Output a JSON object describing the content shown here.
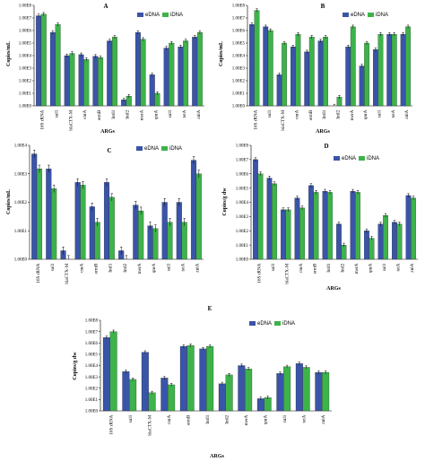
{
  "colors": {
    "edna": "#3a54a8",
    "idna": "#3db34a",
    "axis": "#000000",
    "error": "#000000"
  },
  "chart_data": [
    {
      "type": "bar",
      "title": "A",
      "xlabel": "ARGs",
      "ylabel": "Copies/mL",
      "yscale": "log",
      "ylim": [
        1,
        100000000
      ],
      "yticks": [
        "1.00E0",
        "1.00E1",
        "1.00E2",
        "1.00E3",
        "1.00E4",
        "1.00E5",
        "1.00E6",
        "1.00E7",
        "1.00E8"
      ],
      "legend": [
        "eDNA",
        "iDNA"
      ],
      "legend_position": "top-right",
      "categories": [
        "16S rRNA",
        "sul1",
        "blaCTX-M",
        "cnrA",
        "ermB",
        "IntI1",
        "IntI2",
        "merA",
        "qnrA",
        "sul1",
        "tetA",
        "znlA"
      ],
      "series": [
        {
          "name": "eDNA",
          "values": [
            15000000,
            700000,
            10000,
            12000,
            9000,
            150000,
            3,
            700000,
            300,
            40000,
            50000,
            300000
          ]
        },
        {
          "name": "iDNA",
          "values": [
            20000000,
            3000000,
            15000,
            5000,
            7000,
            300000,
            6,
            200000,
            10,
            100000,
            150000,
            700000
          ]
        }
      ]
    },
    {
      "type": "bar",
      "title": "B",
      "xlabel": "ARGs",
      "ylabel": "Copies/mL",
      "yscale": "log",
      "ylim": [
        1,
        100000000
      ],
      "yticks": [
        "1.00E0",
        "1.00E1",
        "1.00E2",
        "1.00E3",
        "1.00E4",
        "1.00E5",
        "1.00E6",
        "1.00E7",
        "1.00E8"
      ],
      "legend": [
        "eDNA",
        "iDNA"
      ],
      "legend_position": "top-right",
      "categories": [
        "16S rRNA",
        "sul1",
        "blaCTX-M",
        "cnrA",
        "ermB",
        "IntI1",
        "IntI2",
        "merA",
        "qnrA",
        "sul1",
        "tetA",
        "znlA"
      ],
      "series": [
        {
          "name": "eDNA",
          "values": [
            3000000,
            2000000,
            300,
            50000,
            20000,
            150000,
            1,
            50000,
            1500,
            30000,
            500000,
            500000
          ]
        },
        {
          "name": "iDNA",
          "values": [
            40000000,
            1000000,
            100000,
            500000,
            300000,
            300000,
            5,
            2000000,
            100000,
            500000,
            500000,
            2000000
          ]
        }
      ]
    },
    {
      "type": "bar",
      "title": "C",
      "xlabel": "",
      "ylabel": "Copies/mL",
      "yscale": "log",
      "ylim": [
        1,
        10000
      ],
      "yticks": [
        "1.00E0",
        "1.00E1",
        "1.00E2",
        "1.00E3",
        "1.00E4"
      ],
      "legend": [
        "eDNA",
        "iDNA"
      ],
      "legend_position": "top-right",
      "categories": [
        "16S rRNA",
        "sul1",
        "blaCTX-M",
        "cnrA",
        "ermB",
        "IntI1",
        "IntI2",
        "merA",
        "qnrA",
        "sul1",
        "tetA",
        "znlA"
      ],
      "series": [
        {
          "name": "eDNA",
          "values": [
            5000,
            1500,
            2,
            500,
            70,
            500,
            2,
            80,
            15,
            100,
            100,
            3000
          ]
        },
        {
          "name": "iDNA",
          "values": [
            1500,
            300,
            1,
            400,
            20,
            150,
            1,
            50,
            12,
            20,
            20,
            1000
          ]
        }
      ]
    },
    {
      "type": "bar",
      "title": "D",
      "xlabel": "ARGs",
      "ylabel": "Copies/g dw",
      "yscale": "log",
      "ylim": [
        1,
        100000000
      ],
      "yticks": [
        "1.00E0",
        "1.00E1",
        "1.00E2",
        "1.00E3",
        "1.00E4",
        "1.00E5",
        "1.00E6",
        "1.00E7",
        "1.00E8"
      ],
      "legend": [
        "eDNA",
        "iDNA"
      ],
      "legend_position": "top-right",
      "categories": [
        "16S rRNA",
        "sul1",
        "blaCTX-M",
        "cnrA",
        "ermB",
        "IntI1",
        "IntI2",
        "merA",
        "qnrA",
        "sul1",
        "tetA",
        "znlA"
      ],
      "series": [
        {
          "name": "eDNA",
          "values": [
            10000000,
            500000,
            3000,
            20000,
            150000,
            60000,
            300,
            60000,
            100,
            300,
            400,
            30000
          ]
        },
        {
          "name": "iDNA",
          "values": [
            1000000,
            200000,
            3000,
            4000,
            50000,
            50000,
            10,
            50000,
            30,
            1200,
            300,
            20000
          ]
        }
      ]
    },
    {
      "type": "bar",
      "title": "E",
      "xlabel": "ARGs",
      "ylabel": "Copies/g dw",
      "yscale": "log",
      "ylim": [
        1,
        100000000
      ],
      "yticks": [
        "1.00E0",
        "1.00E1",
        "1.00E2",
        "1.00E3",
        "1.00E4",
        "1.00E5",
        "1.00E6",
        "1.00E7",
        "1.00E8"
      ],
      "legend": [
        "eDNA",
        "iDNA"
      ],
      "legend_position": "top-right",
      "categories": [
        "16S rRNA",
        "sul1",
        "blaCTX-M",
        "cnrA",
        "ermB",
        "IntI1",
        "IntI2",
        "merA",
        "qnrA",
        "sul1",
        "tetA",
        "znlA"
      ],
      "series": [
        {
          "name": "eDNA",
          "values": [
            3000000,
            3000,
            150000,
            800,
            500000,
            300000,
            250,
            10000,
            12,
            2000,
            15000,
            2500
          ]
        },
        {
          "name": "iDNA",
          "values": [
            10000000,
            600,
            40,
            200,
            600000,
            500000,
            1500,
            5000,
            15,
            8000,
            7000,
            2500
          ]
        }
      ]
    }
  ]
}
